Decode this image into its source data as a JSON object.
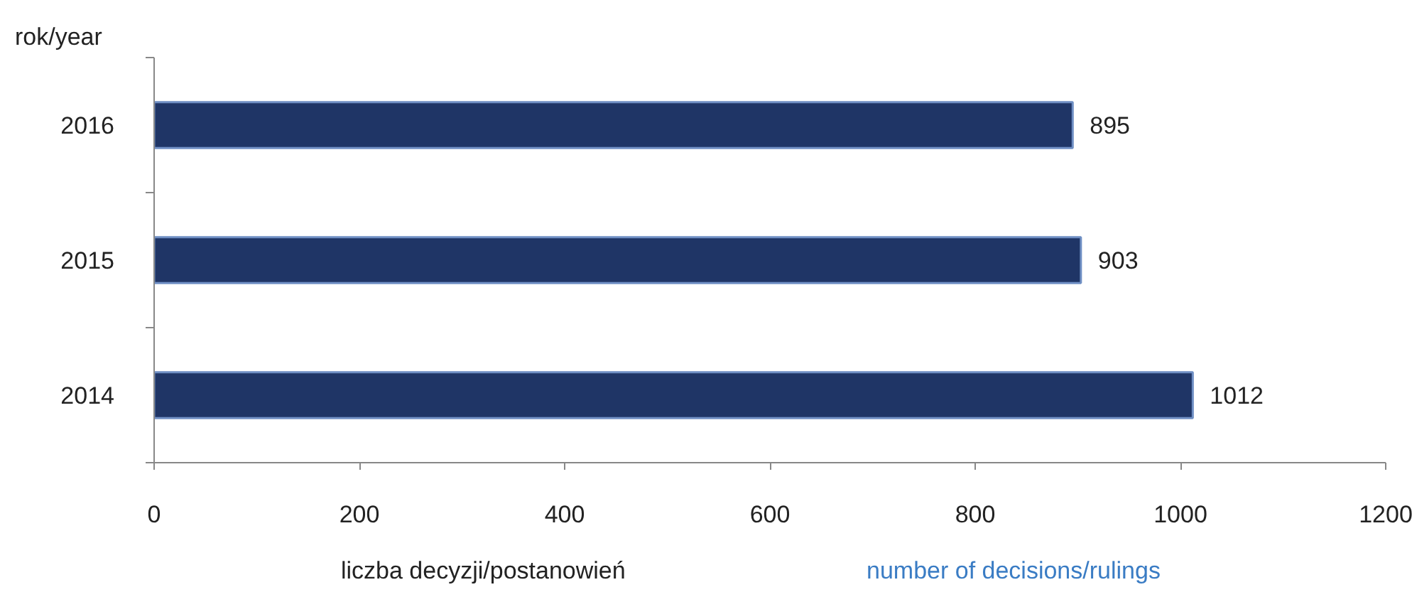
{
  "chart_data": {
    "type": "bar",
    "orientation": "horizontal",
    "categories": [
      "2016",
      "2015",
      "2014"
    ],
    "values": [
      895,
      903,
      1012
    ],
    "color": "#1f3566",
    "data_labels": true,
    "xlim": [
      0,
      1200
    ],
    "xticks": [
      0,
      200,
      400,
      600,
      800,
      1000,
      1200
    ],
    "grid": false,
    "xlabel": "liczba decyzji/postanowień",
    "ylabel": "rok/year",
    "annotations": [
      "number of decisions/rulings"
    ]
  }
}
